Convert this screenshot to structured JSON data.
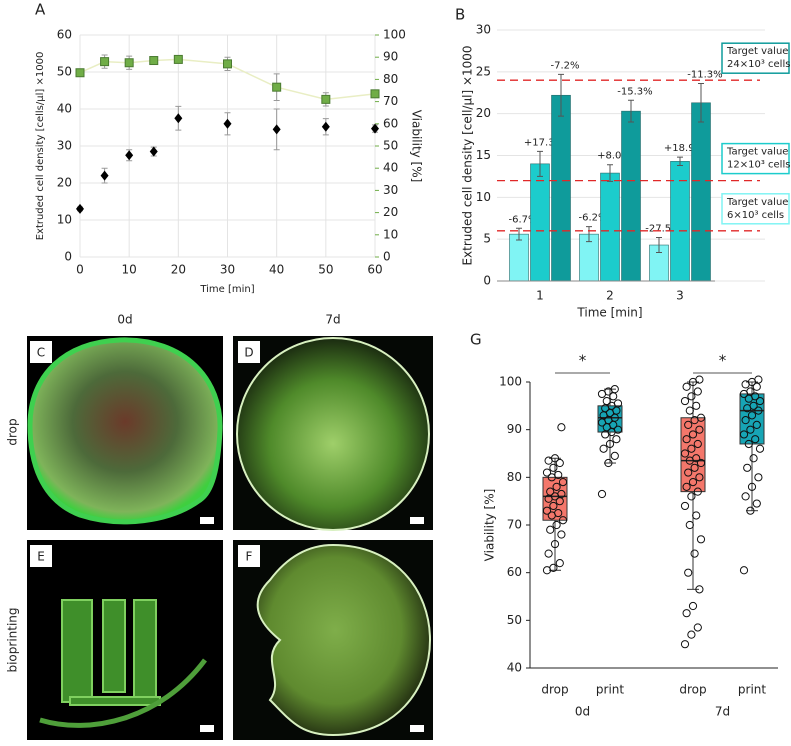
{
  "chart_data": [
    {
      "type": "scatter",
      "panel": "A",
      "xlabel": "Time [min]",
      "ylabel": "Extruded cell density [cells/µl] ×1000",
      "y2label": "Viability [%]",
      "x": [
        0,
        5,
        10,
        15,
        20,
        30,
        40,
        50,
        60
      ],
      "xlim": [
        0,
        60
      ],
      "xticks": [
        0,
        10,
        20,
        30,
        40,
        50,
        60
      ],
      "ylim": [
        0,
        60
      ],
      "yticks": [
        0,
        10,
        20,
        30,
        40,
        50,
        60
      ],
      "y2lim": [
        0,
        100
      ],
      "y2ticks": [
        0,
        10,
        20,
        30,
        40,
        50,
        60,
        70,
        80,
        90,
        100
      ],
      "grid": true,
      "series": [
        {
          "color": "#000000",
          "marker": "diamond",
          "values": [
            13,
            22,
            27.5,
            28.5,
            37.5,
            36,
            34.5,
            35.2,
            34.7
          ],
          "errors": [
            0.5,
            2,
            1.5,
            1.2,
            3.2,
            3,
            5.5,
            2.2,
            1
          ]
        },
        {
          "axis": "y2",
          "color": "#70ad47",
          "marker": "square",
          "line": true,
          "values": [
            83,
            88,
            87.5,
            88.5,
            89,
            87,
            76.5,
            71,
            73.5
          ],
          "errors": [
            1,
            3,
            3,
            1,
            1,
            3,
            6,
            3,
            1
          ]
        }
      ]
    },
    {
      "type": "bar",
      "panel": "B",
      "xlabel": "Time [min]",
      "ylabel": "Extruded cell density [cell/µl] ×1000",
      "categories": [
        "1",
        "2",
        "3"
      ],
      "ylim": [
        0,
        30
      ],
      "yticks": [
        0,
        5,
        10,
        15,
        20,
        25,
        30
      ],
      "grid": true,
      "series": [
        {
          "color": "#80f4f4",
          "values": [
            5.6,
            5.6,
            4.3
          ],
          "errors": [
            0.7,
            0.9,
            0.9
          ],
          "annotations": [
            "-6.7%",
            "-6.2%",
            "-27.5%"
          ]
        },
        {
          "color": "#1ccccc",
          "values": [
            14,
            12.9,
            14.3
          ],
          "errors": [
            1.5,
            1,
            0.5
          ],
          "annotations": [
            "+17.3%",
            "+8.0%",
            "+18.9%"
          ]
        },
        {
          "color": "#0f9b9b",
          "values": [
            22.2,
            20.3,
            21.3
          ],
          "errors": [
            2.5,
            1.3,
            2.3
          ],
          "annotations": [
            "-7.2%",
            "-15.3%",
            "-11.3%"
          ]
        }
      ],
      "target_color": "#e02828",
      "targets": [
        {
          "value": 24,
          "label": "Target value",
          "sublabel": "24×10³ cells",
          "color": "#0f9b9b"
        },
        {
          "value": 12,
          "label": "Target value",
          "sublabel": "12×10³ cells",
          "color": "#1ccccc"
        },
        {
          "value": 6,
          "label": "Target value",
          "sublabel": "6×10³ cells",
          "color": "#80f4f4"
        }
      ]
    },
    {
      "type": "box",
      "panel": "G",
      "ylabel": "Viability [%]",
      "categories": [
        "drop",
        "print",
        "drop",
        "print"
      ],
      "groups": [
        "0d",
        "7d"
      ],
      "significance": [
        "*",
        "*"
      ],
      "ylim": [
        40,
        100
      ],
      "yticks": [
        40,
        50,
        60,
        70,
        80,
        90,
        100
      ],
      "colors": [
        "#f4776b",
        "#17a5b5",
        "#f4776b",
        "#17a5b5"
      ],
      "boxes": [
        {
          "low": 60.5,
          "q1": 71,
          "median": 76,
          "q3": 80,
          "high": 84,
          "points": [
            60.5,
            61,
            62,
            64,
            66,
            68,
            69,
            70,
            71,
            72,
            72.5,
            73,
            74,
            75,
            75.5,
            76,
            76.5,
            77,
            78,
            79,
            80,
            80.5,
            81,
            82,
            83,
            83.5,
            84,
            90.5
          ]
        },
        {
          "low": 83,
          "q1": 89.5,
          "median": 92.5,
          "q3": 95,
          "high": 98.5,
          "points": [
            76.5,
            83,
            84.5,
            86,
            87,
            88,
            89,
            89.5,
            90,
            90.5,
            91,
            91.5,
            92,
            92.5,
            93,
            93.5,
            94,
            94.5,
            95,
            95.5,
            96,
            97,
            97.5,
            98,
            98.5
          ]
        },
        {
          "low": 56.5,
          "q1": 77,
          "median": 83.5,
          "q3": 92.5,
          "high": 100,
          "points": [
            45,
            47,
            48.5,
            51.5,
            53,
            56.5,
            60,
            64,
            67,
            70,
            72,
            74,
            76,
            77,
            78,
            79,
            80,
            81,
            82,
            83,
            83.5,
            84,
            85,
            86,
            87,
            88,
            89,
            90,
            91,
            92,
            92.5,
            94,
            95,
            96,
            97,
            98,
            99,
            100,
            100.5
          ]
        },
        {
          "low": 73,
          "q1": 87,
          "median": 94,
          "q3": 97.5,
          "high": 100,
          "points": [
            60.5,
            73,
            74.5,
            76,
            78,
            80,
            82,
            84,
            86,
            87,
            88,
            89,
            90,
            91,
            92,
            93,
            94,
            94.5,
            95,
            96,
            96.5,
            97,
            97.5,
            98,
            99,
            99.5,
            100,
            100.5
          ]
        }
      ]
    }
  ],
  "micrographs": {
    "columns": [
      "0d",
      "7d"
    ],
    "rows": [
      "drop",
      "bioprinting"
    ],
    "labels": [
      "C",
      "D",
      "E",
      "F"
    ]
  }
}
